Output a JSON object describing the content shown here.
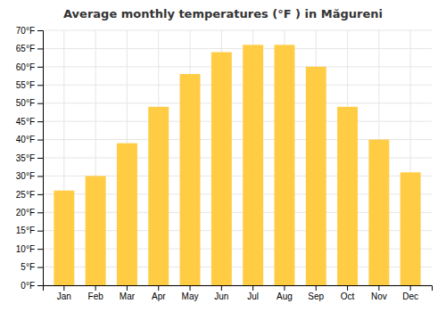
{
  "chart_data": {
    "type": "bar",
    "title": "Average monthly temperatures (°F ) in Măgureni",
    "categories": [
      "Jan",
      "Feb",
      "Mar",
      "Apr",
      "May",
      "Jun",
      "Jul",
      "Aug",
      "Sep",
      "Oct",
      "Nov",
      "Dec"
    ],
    "values": [
      26,
      30,
      39,
      49,
      58,
      64,
      66,
      66,
      60,
      49,
      40,
      31
    ],
    "color": "#FFCC44",
    "ylim": [
      0,
      70
    ],
    "yticks": [
      {
        "value": 0,
        "label": "0°F"
      },
      {
        "value": 5,
        "label": "5°F"
      },
      {
        "value": 10,
        "label": "10°F"
      },
      {
        "value": 15,
        "label": "15°F"
      },
      {
        "value": 20,
        "label": "20°F"
      },
      {
        "value": 25,
        "label": "25°F"
      },
      {
        "value": 30,
        "label": "30°F"
      },
      {
        "value": 35,
        "label": "35°F"
      },
      {
        "value": 40,
        "label": "40°F"
      },
      {
        "value": 45,
        "label": "45°F"
      },
      {
        "value": 50,
        "label": "50°F"
      },
      {
        "value": 55,
        "label": "55°F"
      },
      {
        "value": 60,
        "label": "60°F"
      },
      {
        "value": 65,
        "label": "65°F"
      },
      {
        "value": 70,
        "label": "70°F"
      }
    ],
    "grid": true
  }
}
